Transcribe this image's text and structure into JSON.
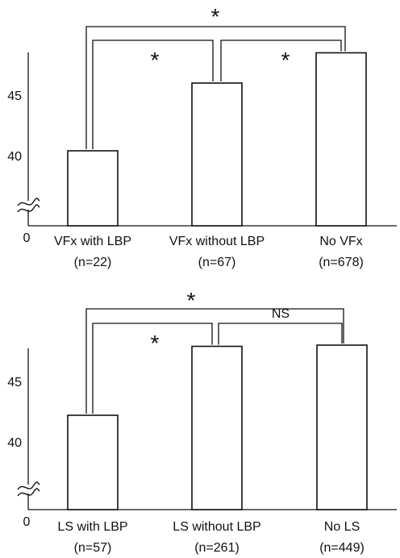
{
  "chart_data": [
    {
      "type": "bar",
      "categories": [
        "VFx with LBP",
        "VFx without LBP",
        "No VFx"
      ],
      "n_labels": [
        "(n=22)",
        "(n=67)",
        "(n=678)"
      ],
      "values": [
        40.4,
        46.0,
        48.5
      ],
      "yticks": [
        40,
        45
      ],
      "zero_label": "0",
      "axis_break": true,
      "comparisons": [
        {
          "from": 1,
          "to": 2,
          "label": "*"
        },
        {
          "from": 2,
          "to": 3,
          "label": "*"
        },
        {
          "from": 1,
          "to": 3,
          "label": "*"
        }
      ]
    },
    {
      "type": "bar",
      "categories": [
        "LS with LBP",
        "LS without LBP",
        "No LS"
      ],
      "n_labels": [
        "(n=57)",
        "(n=261)",
        "(n=449)"
      ],
      "values": [
        42.2,
        47.9,
        48.0
      ],
      "yticks": [
        40,
        45
      ],
      "zero_label": "0",
      "axis_break": true,
      "comparisons": [
        {
          "from": 1,
          "to": 2,
          "label": "*"
        },
        {
          "from": 2,
          "to": 3,
          "label": "NS"
        },
        {
          "from": 1,
          "to": 3,
          "label": "*"
        }
      ]
    }
  ]
}
